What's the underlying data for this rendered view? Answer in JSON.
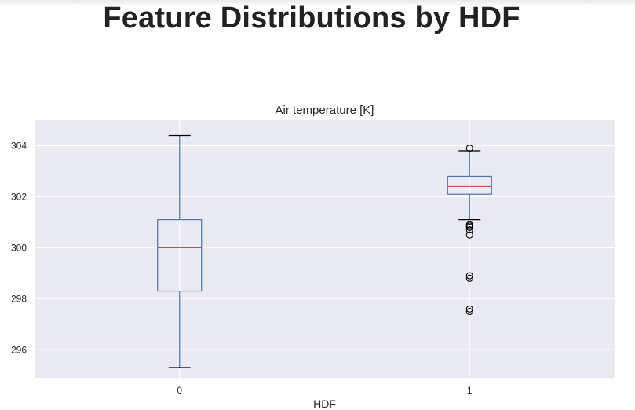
{
  "page": {
    "suptitle": "Feature Distributions by HDF"
  },
  "chart_data": {
    "type": "box",
    "title": "Air temperature [K]",
    "xlabel": "HDF",
    "ylabel": "",
    "ylim": [
      294.9,
      305.0
    ],
    "yticks": [
      296,
      298,
      300,
      302,
      304
    ],
    "grid": true,
    "categories": [
      "0",
      "1"
    ],
    "boxes": [
      {
        "category": "0",
        "whisker_low": 295.3,
        "q1": 298.3,
        "median": 300.0,
        "q3": 301.1,
        "whisker_high": 304.4,
        "outliers": []
      },
      {
        "category": "1",
        "whisker_low": 301.1,
        "q1": 302.1,
        "median": 302.4,
        "q3": 302.8,
        "whisker_high": 303.8,
        "outliers": [
          303.9,
          300.9,
          300.85,
          300.8,
          300.7,
          300.5,
          298.9,
          298.8,
          297.6,
          297.5
        ]
      }
    ],
    "colors": {
      "background": "#eaeaf2",
      "grid": "#ffffff",
      "box": "#4c72b0",
      "median": "#c44e52",
      "cap": "#000000",
      "flier": "#000000"
    }
  }
}
